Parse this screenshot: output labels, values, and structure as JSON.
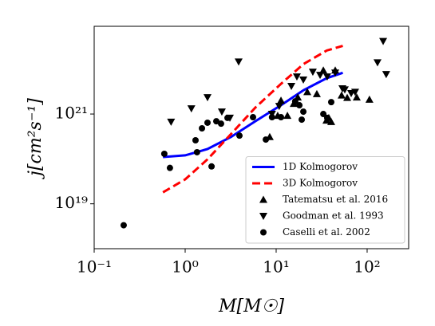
{
  "chart_data": {
    "type": "scatter",
    "xlabel": "M[M☉]",
    "ylabel": "j[cm²s⁻¹]",
    "xscale": "log",
    "yscale": "log",
    "xlim": [
      0.1,
      286
    ],
    "ylim": [
      1e+18,
      9e+22
    ],
    "xticks": [
      {
        "value": 0.1,
        "label": "10⁻¹"
      },
      {
        "value": 1,
        "label": "10⁰"
      },
      {
        "value": 10,
        "label": "10¹"
      },
      {
        "value": 100,
        "label": "10²"
      }
    ],
    "yticks": [
      {
        "value": 1e+19,
        "label": "10¹⁹"
      },
      {
        "value": 1e+21,
        "label": "10²¹"
      }
    ],
    "legend": "lower right",
    "series": [
      {
        "name": "1D Kolmogorov",
        "color": "#0000ff",
        "linestyle": "solid",
        "x": [
          0.57,
          1.0,
          1.76,
          3.2,
          5.9,
          11.3,
          20,
          36,
          54
        ],
        "values": [
          1.1e+20,
          1.2e+20,
          1.66e+20,
          3.1e+20,
          6.9e+20,
          1.57e+21,
          3.4e+21,
          6.3e+21,
          8.3e+21
        ]
      },
      {
        "name": "3D Kolmogorov",
        "color": "#ff0000",
        "linestyle": "dashed",
        "x": [
          0.57,
          1.0,
          1.76,
          3.2,
          5.9,
          11.3,
          20,
          36,
          54
        ],
        "values": [
          1.8e+19,
          3.5e+19,
          9.8e+19,
          3.6e+20,
          1.39e+21,
          4.7e+21,
          1.3e+22,
          2.6e+22,
          3.3e+22
        ]
      },
      {
        "name": "Tatematsu et al. 2016",
        "color": "#000000",
        "marker": "triangle-up",
        "x": [
          8.5,
          10.4,
          11.3,
          13.3,
          15.6,
          17.3,
          22,
          28,
          33,
          35.7,
          37.9,
          40.3,
          44.6,
          52.4,
          60.4,
          76.9,
          106
        ],
        "values": [
          3.1e+20,
          9.2e+20,
          2e+21,
          9.2e+20,
          1.7e+21,
          2.35e+21,
          3.1e+21,
          2.8e+21,
          9.4e+21,
          7.2e+20,
          8.2e+20,
          6.7e+20,
          9.4e+21,
          2.6e+21,
          2.3e+21,
          2.35e+21,
          2.1e+21
        ]
      },
      {
        "name": "Goodman et al. 1993",
        "color": "#000000",
        "marker": "triangle-down",
        "x": [
          0.7,
          1.17,
          1.76,
          2.53,
          3.1,
          3.87,
          9.0,
          10.8,
          14.7,
          16.9,
          19.9,
          25.3,
          30.4,
          36.4,
          44.6,
          53.5,
          56.8,
          66.8,
          73.8,
          150,
          130,
          162
        ],
        "values": [
          6.7e+20,
          1.33e+21,
          2.35e+21,
          1.13e+21,
          8.2e+20,
          1.47e+22,
          1e+21,
          1.5e+21,
          4.2e+21,
          6.8e+21,
          5.8e+21,
          8.7e+21,
          7.4e+21,
          6.8e+21,
          8.3e+21,
          3.7e+21,
          3.5e+21,
          2.9e+21,
          3.1e+21,
          4.2e+22,
          1.41e+22,
          7.7e+21
        ]
      },
      {
        "name": "Caselli et al. 2002",
        "color": "#000000",
        "marker": "circle",
        "x": [
          0.211,
          0.59,
          0.68,
          1.3,
          1.35,
          1.53,
          1.76,
          1.95,
          2.2,
          2.48,
          2.92,
          3.95,
          5.57,
          7.7,
          9.0,
          11.3,
          16.2,
          18,
          19.1,
          19.9,
          33,
          36.4,
          40.3
        ],
        "values": [
          3.33e+18,
          1.3e+20,
          6.3e+19,
          2.6e+20,
          1.41e+20,
          4.8e+20,
          6.4e+20,
          6.8e+19,
          6.9e+20,
          6.1e+20,
          8.2e+20,
          3.3e+20,
          8.5e+20,
          2.7e+20,
          8.5e+20,
          8.5e+20,
          1.92e+21,
          1.57e+21,
          7.5e+20,
          1.13e+21,
          1e+21,
          8.2e+20,
          1.84e+21
        ]
      }
    ]
  }
}
